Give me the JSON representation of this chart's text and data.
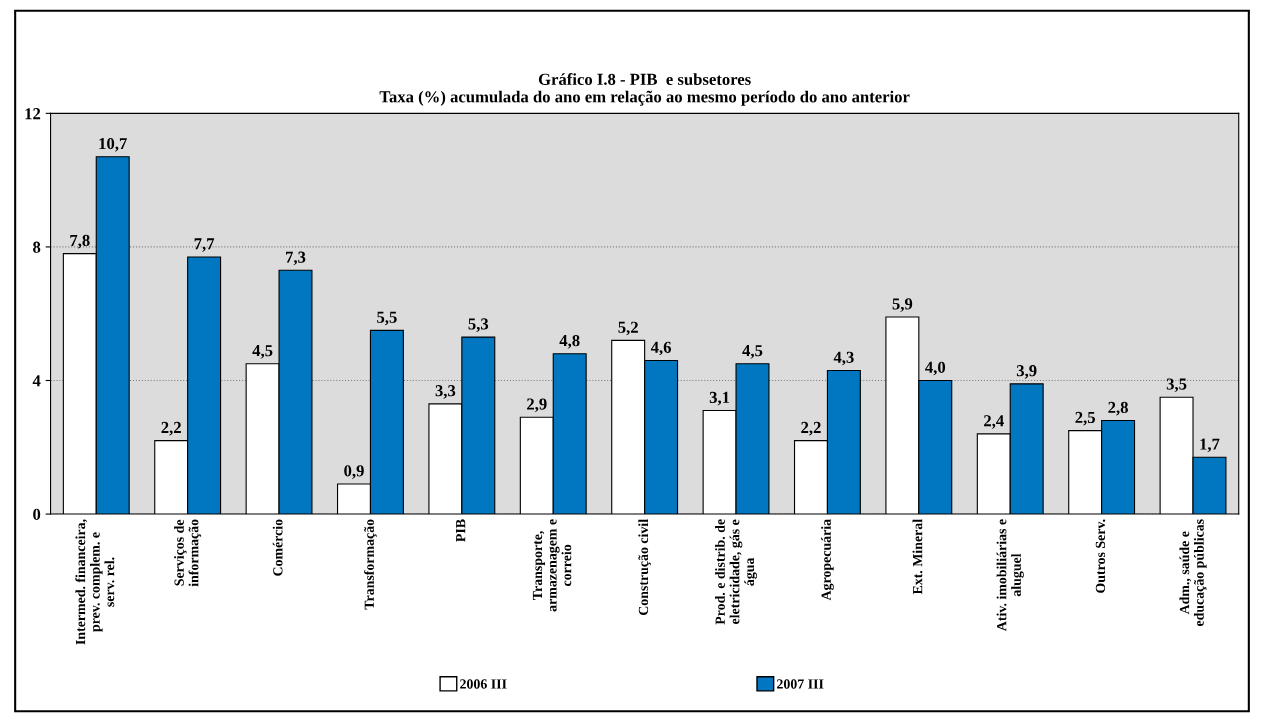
{
  "chart_data": {
    "type": "bar",
    "title": "Gráfico I.8 - PIB  e subsetores",
    "subtitle": "Taxa (%) acumulada do ano em relação ao mesmo período do ano anterior",
    "categories": [
      "Intermed. financeira,\nprev. complem. e\nserv. rel.",
      "Serviços de\ninformação",
      "Comércio",
      "Transformação",
      "PIB",
      "Transporte,\narmazenagem e\ncorreio",
      "Construção civil",
      "Prod. e distrib. de\neletricidade, gás e\nágua",
      "Agropecuária",
      "Ext. Mineral",
      "Ativ. imobiliárias e\naluguel",
      "Outros Serv.",
      "Adm., saúde e\neducação públicas"
    ],
    "series": [
      {
        "name": "2006 III",
        "color": "#ffffff",
        "values": [
          7.8,
          2.2,
          4.5,
          0.9,
          3.3,
          2.9,
          5.2,
          3.1,
          2.2,
          5.9,
          2.4,
          2.5,
          3.5
        ],
        "value_labels": [
          "7,8",
          "2,2",
          "4,5",
          "0,9",
          "3,3",
          "2,9",
          "5,2",
          "3,1",
          "2,2",
          "5,9",
          "2,4",
          "2,5",
          "3,5"
        ]
      },
      {
        "name": "2007 III",
        "color": "#0077c0",
        "values": [
          10.7,
          7.7,
          7.3,
          5.5,
          5.3,
          4.8,
          4.6,
          4.5,
          4.3,
          4.0,
          3.9,
          2.8,
          1.7
        ],
        "value_labels": [
          "10,7",
          "7,7",
          "7,3",
          "5,5",
          "5,3",
          "4,8",
          "4,6",
          "4,5",
          "4,3",
          "4,0",
          "3,9",
          "2,8",
          "1,7"
        ]
      }
    ],
    "ylim": [
      0,
      12
    ],
    "yticks": [
      0,
      4,
      8,
      12
    ],
    "grid": "y",
    "legend": "bottom"
  }
}
